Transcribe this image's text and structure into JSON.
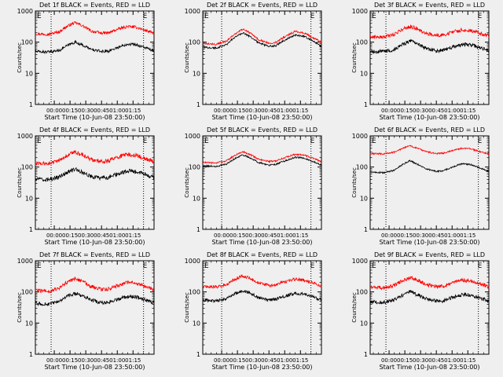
{
  "figure": {
    "background": "#efefef",
    "colors": {
      "events": "#000000",
      "lld": "#ff0000",
      "axes": "#000000"
    },
    "y_axis_label": "Counts/sec",
    "x_axis_label": "Start Time (10-Jun-08 23:50:00)",
    "x_tick_labels": [
      "00:00",
      "00:15",
      "00:30",
      "00:45",
      "01:00",
      "01:15"
    ],
    "y_tick_labels": [
      "1",
      "10",
      "100",
      "1000"
    ],
    "marker_labels": {
      "left": "E",
      "right": "E"
    }
  },
  "chart_data": [
    {
      "type": "line",
      "title": "Det 1f BLACK = Events, RED = LLD",
      "xlabel": "Start Time (10-Jun-08 23:50:00)",
      "ylabel": "Counts/sec",
      "x_unit": "minutes after 23:50:00",
      "x_range": [
        -8,
        105
      ],
      "y_scale": "log",
      "ylim": [
        1,
        1000
      ],
      "x_tick_labels": [
        "00:00",
        "00:15",
        "00:30",
        "00:45",
        "01:00",
        "01:15"
      ],
      "vertical_dotted_lines": [
        "23:57",
        "01:25"
      ],
      "noise": 0.045,
      "x": [
        -8,
        5,
        15,
        25,
        30,
        35,
        45,
        55,
        62,
        72,
        80,
        88,
        95,
        105
      ],
      "series": [
        {
          "name": "LLD",
          "color": "#ff0000",
          "values": [
            185,
            180,
            215,
            360,
            420,
            360,
            225,
            195,
            200,
            270,
            320,
            300,
            250,
            190
          ]
        },
        {
          "name": "Events",
          "color": "#000000",
          "values": [
            50,
            48,
            55,
            85,
            100,
            85,
            58,
            50,
            52,
            70,
            88,
            82,
            70,
            50
          ]
        }
      ]
    },
    {
      "type": "line",
      "title": "Det 2f BLACK = Events, RED = LLD",
      "xlabel": "Start Time (10-Jun-08 23:50:00)",
      "ylabel": "Counts/sec",
      "x_unit": "minutes after 23:50:00",
      "x_range": [
        -8,
        105
      ],
      "y_scale": "log",
      "ylim": [
        1,
        1000
      ],
      "x_tick_labels": [
        "00:00",
        "00:15",
        "00:30",
        "00:45",
        "01:00",
        "01:15"
      ],
      "vertical_dotted_lines": [
        "00:00",
        "01:25"
      ],
      "noise": 0.03,
      "x": [
        -8,
        5,
        15,
        25,
        30,
        35,
        45,
        55,
        62,
        72,
        80,
        88,
        95,
        105
      ],
      "series": [
        {
          "name": "LLD",
          "color": "#ff0000",
          "values": [
            90,
            85,
            110,
            200,
            260,
            215,
            120,
            92,
            100,
            160,
            220,
            200,
            150,
            95
          ]
        },
        {
          "name": "Events",
          "color": "#000000",
          "values": [
            68,
            65,
            85,
            160,
            200,
            165,
            95,
            72,
            78,
            125,
            170,
            155,
            118,
            72
          ]
        }
      ]
    },
    {
      "type": "line",
      "title": "Det 3f BLACK = Events, RED = LLD",
      "xlabel": "Start Time (10-Jun-08 23:50:00)",
      "ylabel": "Counts/sec",
      "x_unit": "minutes after 23:50:00",
      "x_range": [
        -8,
        105
      ],
      "y_scale": "log",
      "ylim": [
        1,
        1000
      ],
      "x_tick_labels": [
        "00:00",
        "00:15",
        "00:30",
        "00:45",
        "01:00",
        "01:15"
      ],
      "vertical_dotted_lines": [
        "23:57",
        "01:25"
      ],
      "noise": 0.06,
      "x": [
        -8,
        5,
        15,
        25,
        30,
        35,
        45,
        55,
        62,
        72,
        80,
        88,
        95,
        105
      ],
      "series": [
        {
          "name": "LLD",
          "color": "#ff0000",
          "values": [
            150,
            145,
            175,
            280,
            320,
            280,
            190,
            165,
            170,
            215,
            250,
            235,
            200,
            155
          ]
        },
        {
          "name": "Events",
          "color": "#000000",
          "values": [
            50,
            50,
            58,
            90,
            110,
            92,
            62,
            52,
            55,
            72,
            85,
            80,
            70,
            52
          ]
        }
      ]
    },
    {
      "type": "line",
      "title": "Det 4f BLACK = Events, RED = LLD",
      "xlabel": "Start Time (10-Jun-08 23:50:00)",
      "ylabel": "Counts/sec",
      "x_unit": "minutes after 23:50:00",
      "x_range": [
        -8,
        105
      ],
      "y_scale": "log",
      "ylim": [
        1,
        1000
      ],
      "x_tick_labels": [
        "00:00",
        "00:15",
        "00:30",
        "00:45",
        "01:00",
        "01:15"
      ],
      "vertical_dotted_lines": [
        "23:57",
        "01:25"
      ],
      "noise": 0.065,
      "x": [
        -8,
        5,
        15,
        25,
        30,
        35,
        45,
        55,
        62,
        72,
        80,
        88,
        95,
        105
      ],
      "series": [
        {
          "name": "LLD",
          "color": "#ff0000",
          "values": [
            130,
            130,
            160,
            260,
            300,
            265,
            175,
            150,
            160,
            215,
            250,
            235,
            195,
            150
          ]
        },
        {
          "name": "Events",
          "color": "#000000",
          "values": [
            40,
            40,
            48,
            72,
            85,
            72,
            50,
            44,
            46,
            62,
            75,
            70,
            60,
            45
          ]
        }
      ]
    },
    {
      "type": "line",
      "title": "Det 5f BLACK = Events, RED = LLD",
      "xlabel": "Start Time (10-Jun-08 23:50:00)",
      "ylabel": "Counts/sec",
      "x_unit": "minutes after 23:50:00",
      "x_range": [
        -8,
        105
      ],
      "y_scale": "log",
      "ylim": [
        1,
        1000
      ],
      "x_tick_labels": [
        "00:00",
        "00:15",
        "00:30",
        "00:45",
        "01:00",
        "01:15"
      ],
      "vertical_dotted_lines": [
        "00:00",
        "01:25"
      ],
      "noise": 0.025,
      "x": [
        -8,
        5,
        15,
        25,
        30,
        35,
        45,
        55,
        62,
        72,
        80,
        88,
        95,
        105
      ],
      "series": [
        {
          "name": "LLD",
          "color": "#ff0000",
          "values": [
            140,
            135,
            160,
            260,
            310,
            265,
            180,
            150,
            158,
            210,
            255,
            245,
            200,
            150
          ]
        },
        {
          "name": "Events",
          "color": "#000000",
          "values": [
            110,
            105,
            125,
            205,
            245,
            210,
            140,
            115,
            122,
            165,
            205,
            195,
            160,
            112
          ]
        }
      ]
    },
    {
      "type": "line",
      "title": "Det 6f BLACK = Events, RED = LLD",
      "xlabel": "Start Time (10-Jun-08 23:50:00)",
      "ylabel": "Counts/sec",
      "x_unit": "minutes after 23:50:00",
      "x_range": [
        -8,
        105
      ],
      "y_scale": "log",
      "ylim": [
        1,
        1000
      ],
      "x_tick_labels": [
        "00:00",
        "00:15",
        "00:30",
        "00:45",
        "01:00",
        "01:15"
      ],
      "vertical_dotted_lines": [
        "23:57",
        "01:25"
      ],
      "noise": 0.025,
      "x": [
        -8,
        5,
        15,
        25,
        30,
        35,
        45,
        55,
        62,
        72,
        80,
        88,
        95,
        105
      ],
      "series": [
        {
          "name": "LLD",
          "color": "#ff0000",
          "values": [
            270,
            265,
            300,
            420,
            480,
            420,
            310,
            270,
            280,
            350,
            400,
            380,
            320,
            265
          ]
        },
        {
          "name": "Events",
          "color": "#000000",
          "values": [
            68,
            66,
            78,
            130,
            160,
            132,
            88,
            72,
            76,
            105,
            128,
            120,
            98,
            70
          ]
        }
      ]
    },
    {
      "type": "line",
      "title": "Det 7f BLACK = Events, RED = LLD",
      "xlabel": "Start Time (10-Jun-08 23:50:00)",
      "ylabel": "Counts/sec",
      "x_unit": "minutes after 23:50:00",
      "x_range": [
        -8,
        105
      ],
      "y_scale": "log",
      "ylim": [
        1,
        1000
      ],
      "x_tick_labels": [
        "00:00",
        "00:15",
        "00:30",
        "00:45",
        "01:00",
        "01:15"
      ],
      "vertical_dotted_lines": [
        "23:57",
        "01:25"
      ],
      "noise": 0.06,
      "x": [
        -8,
        5,
        15,
        25,
        30,
        35,
        45,
        55,
        62,
        72,
        80,
        88,
        95,
        105
      ],
      "series": [
        {
          "name": "LLD",
          "color": "#ff0000",
          "values": [
            110,
            105,
            130,
            230,
            270,
            232,
            150,
            118,
            125,
            165,
            200,
            188,
            160,
            118
          ]
        },
        {
          "name": "Events",
          "color": "#000000",
          "values": [
            42,
            40,
            48,
            78,
            90,
            78,
            55,
            44,
            46,
            60,
            72,
            68,
            58,
            44
          ]
        }
      ]
    },
    {
      "type": "line",
      "title": "Det 8f BLACK = Events, RED = LLD",
      "xlabel": "Start Time (10-Jun-08 23:50:00)",
      "ylabel": "Counts/sec",
      "x_unit": "minutes after 23:50:00",
      "x_range": [
        -8,
        105
      ],
      "y_scale": "log",
      "ylim": [
        1,
        1000
      ],
      "x_tick_labels": [
        "00:00",
        "00:15",
        "00:30",
        "00:45",
        "01:00",
        "01:15"
      ],
      "vertical_dotted_lines": [
        "00:00",
        "01:25"
      ],
      "noise": 0.05,
      "x": [
        -8,
        5,
        15,
        25,
        30,
        35,
        45,
        55,
        62,
        72,
        80,
        88,
        95,
        105
      ],
      "series": [
        {
          "name": "LLD",
          "color": "#ff0000",
          "values": [
            150,
            145,
            175,
            280,
            330,
            285,
            195,
            160,
            168,
            220,
            255,
            240,
            205,
            155
          ]
        },
        {
          "name": "Events",
          "color": "#000000",
          "values": [
            55,
            52,
            62,
            95,
            110,
            96,
            66,
            56,
            58,
            76,
            90,
            85,
            72,
            55
          ]
        }
      ]
    },
    {
      "type": "line",
      "title": "Det 9f BLACK = Events, RED = LLD",
      "xlabel": "Start Time (10-Jun-08 23:50:00)",
      "ylabel": "Counts/sec",
      "x_unit": "minutes after 23:50:00",
      "x_range": [
        -8,
        105
      ],
      "y_scale": "log",
      "ylim": [
        1,
        1000
      ],
      "x_tick_labels": [
        "00:00",
        "00:15",
        "00:30",
        "00:45",
        "01:00",
        "01:15"
      ],
      "vertical_dotted_lines": [
        "23:57",
        "01:25"
      ],
      "noise": 0.06,
      "x": [
        -8,
        5,
        15,
        25,
        30,
        35,
        45,
        55,
        62,
        72,
        80,
        88,
        95,
        105
      ],
      "series": [
        {
          "name": "LLD",
          "color": "#ff0000",
          "values": [
            140,
            135,
            160,
            250,
            290,
            255,
            175,
            145,
            152,
            200,
            235,
            222,
            188,
            145
          ]
        },
        {
          "name": "Events",
          "color": "#000000",
          "values": [
            48,
            46,
            55,
            85,
            100,
            86,
            60,
            50,
            52,
            68,
            82,
            78,
            66,
            50
          ]
        }
      ]
    }
  ]
}
